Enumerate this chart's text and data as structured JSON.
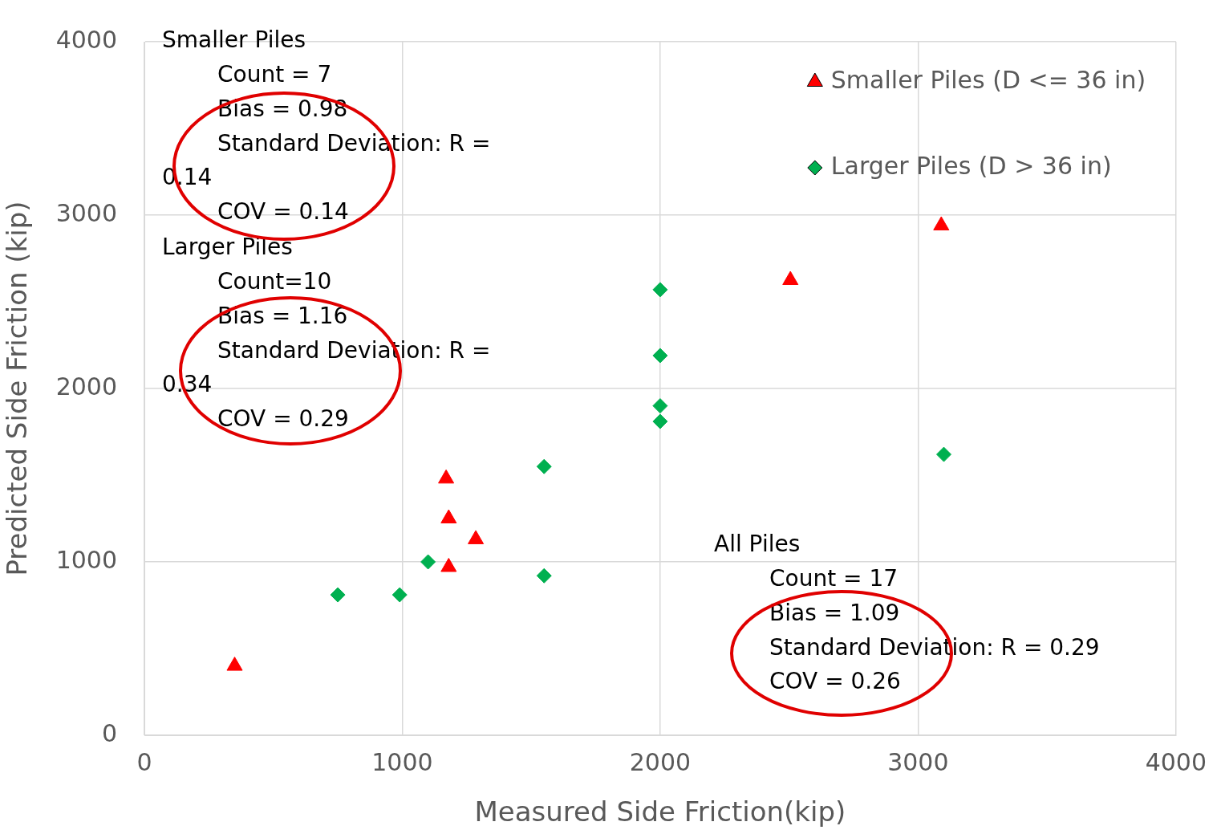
{
  "chart_data": {
    "type": "scatter",
    "xlabel": "Measured Side Friction(kip)",
    "ylabel": "Predicted Side Friction (kip)",
    "xlim": [
      0,
      4000
    ],
    "xticks": [
      0,
      1000,
      2000,
      3000,
      4000
    ],
    "ylim": [
      0,
      4000
    ],
    "yticks": [
      0,
      1000,
      2000,
      3000,
      4000
    ],
    "grid": true,
    "legend": "top right",
    "series": [
      {
        "name": "Smaller Piles (D <= 36 in)",
        "color": "#ff0000",
        "marker": "triangle",
        "x": [
          350,
          1170,
          1180,
          1285,
          1180,
          2505,
          3090
        ],
        "values": [
          400,
          1480,
          1250,
          1130,
          970,
          2625,
          2940
        ]
      },
      {
        "name": "Larger Piles (D > 36 in)",
        "color": "#00b050",
        "marker": "diamond",
        "x": [
          750,
          990,
          1100,
          1550,
          1550,
          2000,
          2000,
          2000,
          2000,
          3100
        ],
        "values": [
          810,
          810,
          1000,
          1550,
          920,
          2570,
          2190,
          1900,
          1810,
          1620
        ]
      }
    ],
    "annotations": [
      "Smaller Piles\nCount = 7\nBias = 0.98\nStandard Deviation: R =\n0.14\nCOV = 0.14",
      "Larger Piles\nCount=10\nBias = 1.16\nStandard Deviation: R =\n0.34\nCOV = 0.29",
      "All Piles\nCount = 17\nBias = 1.09\nStandard Deviation: R = 0.29\nCOV = 0.26"
    ]
  }
}
